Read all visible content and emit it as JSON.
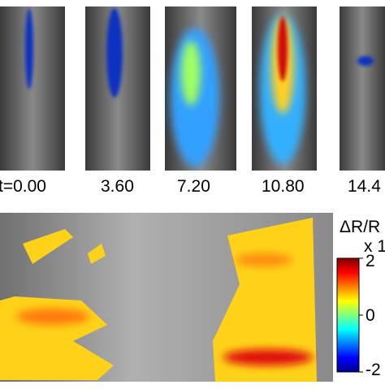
{
  "frames": {
    "labels": [
      "t=0.00",
      "3.60",
      "7.20",
      "10.80",
      "14.4"
    ]
  },
  "colorbar": {
    "title": "ΔR/R",
    "multiplier": "x 1",
    "ticks": [
      2,
      0,
      -2
    ],
    "range": [
      -2,
      2
    ]
  }
}
